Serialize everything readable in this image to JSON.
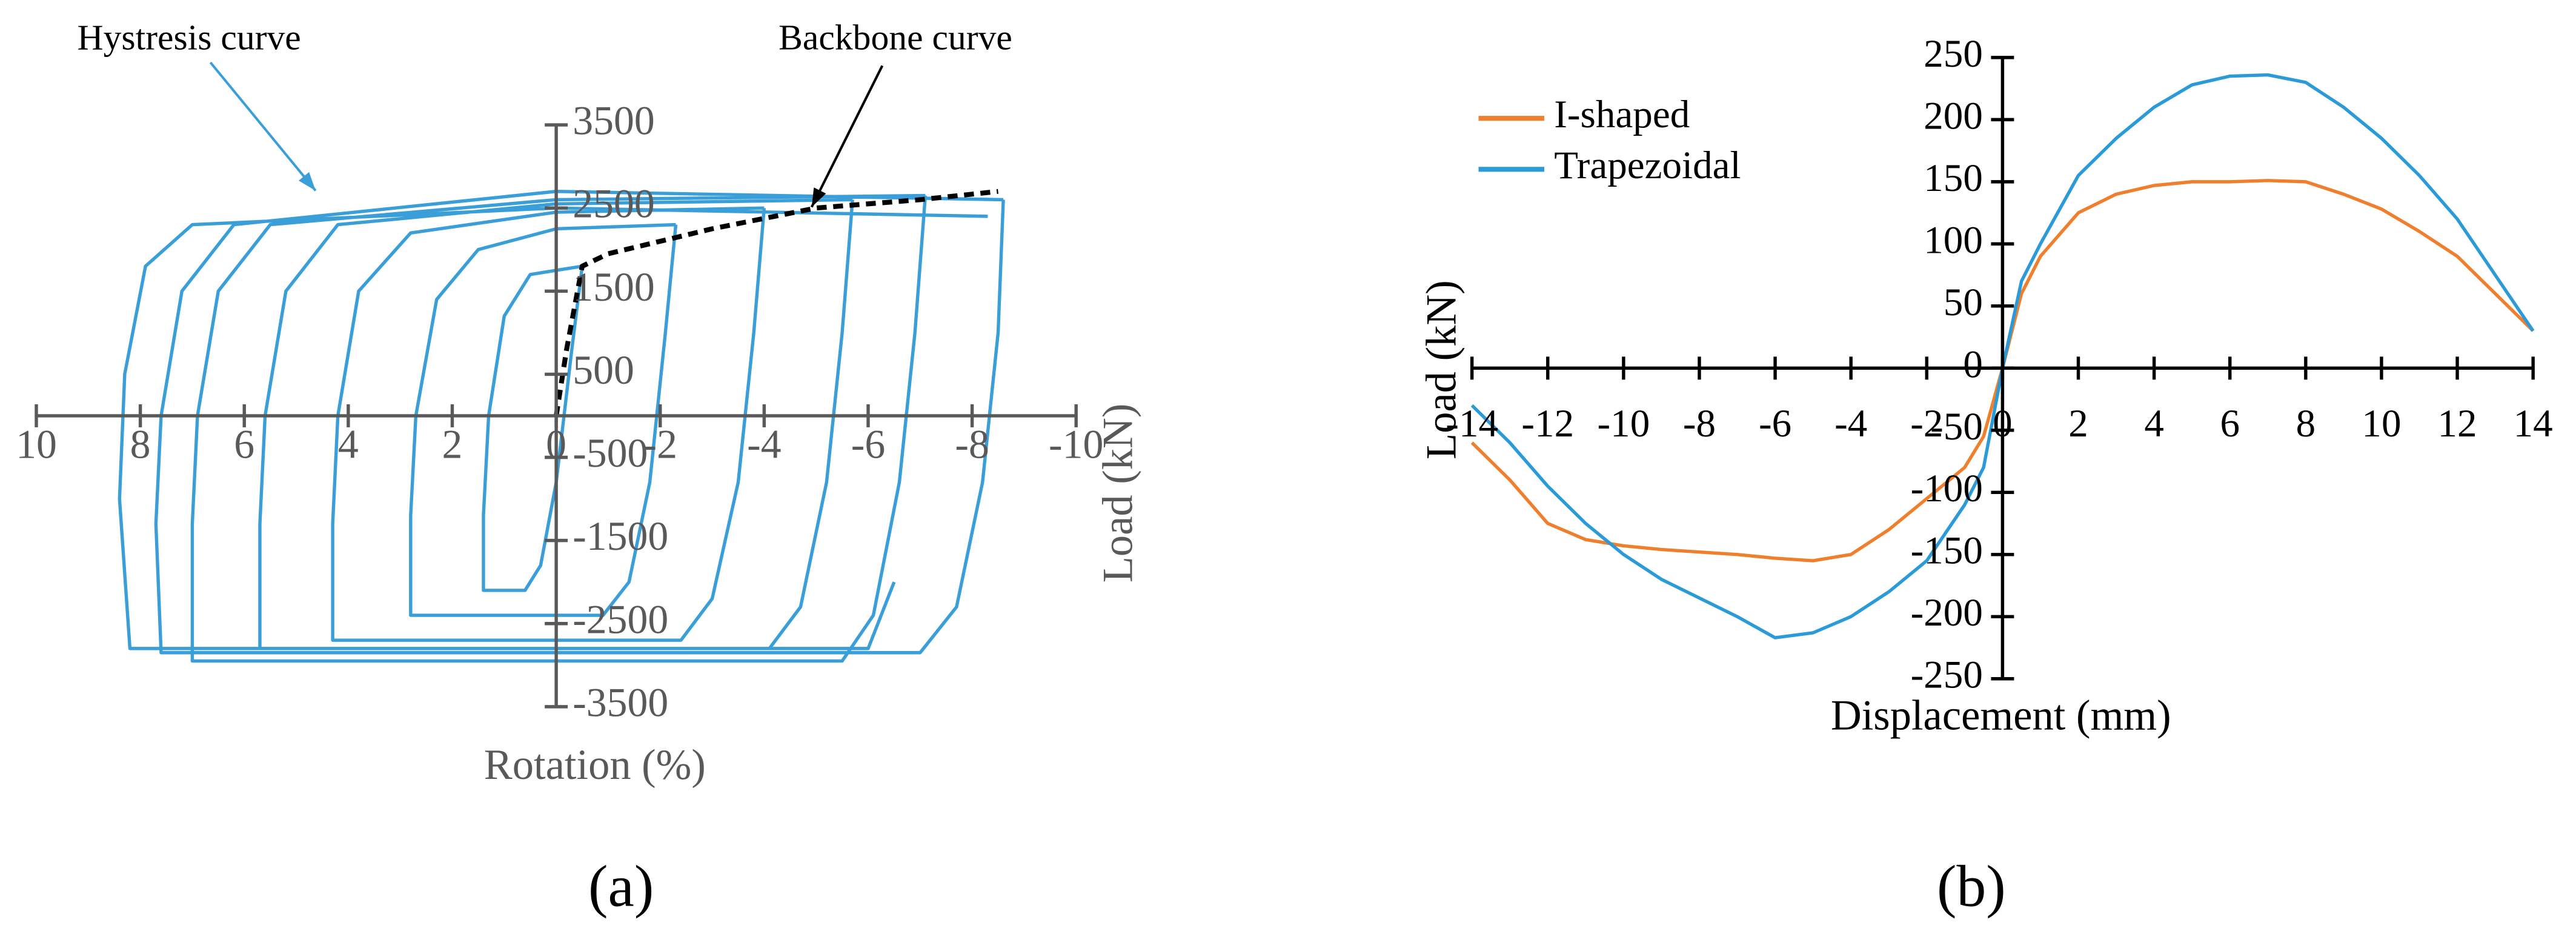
{
  "chart_data": [
    {
      "type": "line",
      "caption": "(a)",
      "x_label": "Rotation (%)",
      "y_label": "Load (kN)",
      "annotations": [
        "Hystresis curve",
        "Backbone curve"
      ],
      "xlim": [
        10,
        -10
      ],
      "xticks": [
        10,
        8,
        6,
        4,
        2,
        0,
        -2,
        -4,
        -6,
        -8,
        -10
      ],
      "ylim": [
        -3500,
        3500
      ],
      "yticks": [
        3500,
        2500,
        1500,
        500,
        -500,
        -1500,
        -2500,
        -3500
      ],
      "axis_color": "#595959",
      "series": [
        {
          "color": "#3a9fd9",
          "x": [
            -0.5,
            -0.3,
            0,
            0.3,
            0.6,
            1.4,
            1.4,
            1.3,
            1.0,
            0.5,
            -0.5,
            null,
            -2.3,
            -2.1,
            -1.8,
            -1.4,
            -0.9,
            2.8,
            2.8,
            2.7,
            2.3,
            1.5,
            0,
            -2.3,
            null,
            -4.0,
            -3.8,
            -3.5,
            -3.0,
            -2.4,
            4.3,
            4.3,
            4.2,
            3.8,
            2.8,
            0,
            -4.0,
            null,
            -5.7,
            -5.5,
            -5.2,
            -4.7,
            -4.1,
            5.7,
            5.7,
            5.6,
            5.2,
            4.2,
            0,
            -5.7,
            null,
            -7.1,
            -6.9,
            -6.6,
            -6.1,
            -5.5,
            7.0,
            7.0,
            6.9,
            6.5,
            5.5,
            0,
            -7.1,
            null,
            -8.6,
            -8.5,
            -8.2,
            -7.7,
            -7.0,
            7.6,
            7.7,
            7.6,
            7.2,
            6.2,
            0,
            -8.6,
            null,
            -6.5,
            -6.0,
            8.2,
            8.4,
            8.3,
            7.9,
            7.0,
            0,
            -8.3
          ],
          "values": [
            1800,
            800,
            -800,
            -1800,
            -2100,
            -2100,
            -1200,
            0,
            1200,
            1700,
            1800,
            null,
            2300,
            1000,
            -800,
            -2000,
            -2400,
            -2400,
            -1200,
            0,
            1400,
            2000,
            2250,
            2300,
            null,
            2500,
            1000,
            -800,
            -2200,
            -2700,
            -2700,
            -1300,
            0,
            1500,
            2200,
            2450,
            2500,
            null,
            2600,
            1000,
            -800,
            -2300,
            -2800,
            -2800,
            -1300,
            0,
            1500,
            2300,
            2550,
            2600,
            null,
            2650,
            1000,
            -800,
            -2400,
            -2950,
            -2950,
            -1300,
            0,
            1500,
            2300,
            2600,
            2650,
            null,
            2600,
            1000,
            -800,
            -2300,
            -2850,
            -2850,
            -1300,
            0,
            1500,
            2300,
            2700,
            2600,
            null,
            -2000,
            -2800,
            -2800,
            -1000,
            500,
            1800,
            2300,
            2500,
            2400
          ]
        },
        {
          "color": "#000000",
          "dashed": true,
          "x": [
            0,
            -0.2,
            -0.5,
            -1.0,
            -2.0,
            -3.0,
            -5.0,
            -7.0,
            -8.5
          ],
          "values": [
            0,
            800,
            1800,
            1950,
            2100,
            2250,
            2500,
            2600,
            2700
          ]
        }
      ]
    },
    {
      "type": "line",
      "caption": "(b)",
      "x_label": "Displacement (mm)",
      "y_label": "Load (kN)",
      "xlim": [
        -14,
        14
      ],
      "xticks": [
        -14,
        -12,
        -10,
        -8,
        -6,
        -4,
        -2,
        0,
        2,
        4,
        6,
        8,
        10,
        12,
        14
      ],
      "ylim": [
        -250,
        250
      ],
      "yticks": [
        250,
        200,
        150,
        100,
        50,
        0,
        -50,
        -100,
        -150,
        -200,
        -250
      ],
      "axis_color": "#000000",
      "legend": "top-left",
      "x": [
        -14,
        -13,
        -12,
        -11,
        -10,
        -9,
        -8,
        -7,
        -6,
        -5,
        -4,
        -3,
        -2,
        -1,
        -0.5,
        0,
        0.5,
        1,
        2,
        3,
        4,
        5,
        6,
        7,
        8,
        9,
        10,
        11,
        12,
        13,
        14
      ],
      "series": [
        {
          "name": "I-shaped",
          "color": "#f07f2d",
          "values": [
            -60,
            -90,
            -125,
            -138,
            -143,
            -146,
            -148,
            -150,
            -153,
            -155,
            -150,
            -130,
            -105,
            -80,
            -55,
            0,
            60,
            90,
            125,
            140,
            147,
            150,
            150,
            151,
            150,
            140,
            128,
            110,
            90,
            60,
            30
          ]
        },
        {
          "name": "Trapezoidal",
          "color": "#2a9bd8",
          "values": [
            -30,
            -60,
            -95,
            -125,
            -150,
            -170,
            -185,
            -200,
            -217,
            -213,
            -200,
            -180,
            -155,
            -110,
            -80,
            0,
            70,
            100,
            155,
            185,
            210,
            228,
            235,
            236,
            230,
            210,
            185,
            155,
            120,
            75,
            30
          ]
        }
      ]
    }
  ]
}
